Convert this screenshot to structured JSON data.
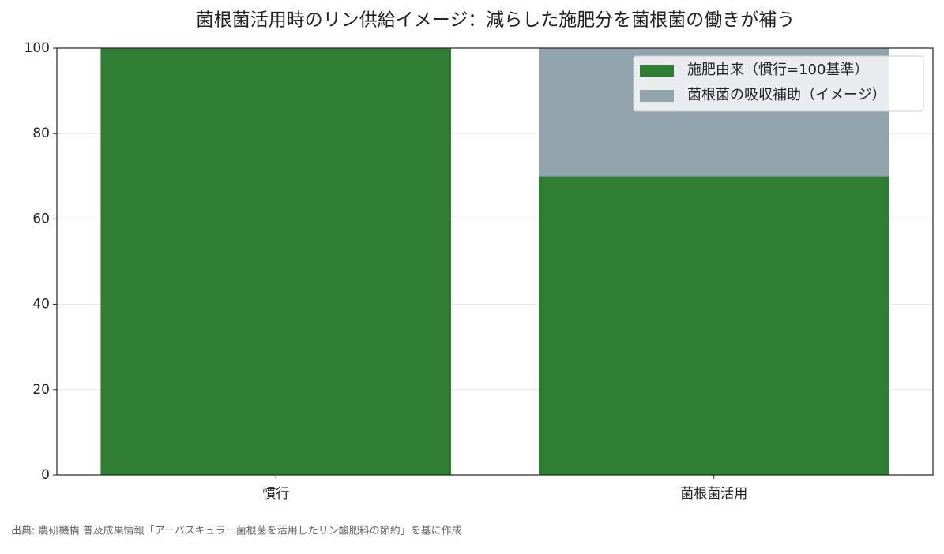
{
  "chart_data": {
    "type": "bar",
    "stacked": true,
    "title": "菌根菌活用時のリン供給イメージ：減らした施肥分を菌根菌の働きが補う",
    "categories": [
      "慣行",
      "菌根菌活用"
    ],
    "series": [
      {
        "name": "施肥由来（慣行=100基準）",
        "color": "#2e7d32",
        "values": [
          100,
          70
        ]
      },
      {
        "name": "菌根菌の吸収補助（イメージ）",
        "color": "#90a4ae",
        "values": [
          0,
          30
        ]
      }
    ],
    "ylim": [
      0,
      100
    ],
    "yticks": [
      0,
      20,
      40,
      60,
      80,
      100
    ],
    "grid": true,
    "legend": "upper right",
    "source": "出典: 農研機構 普及成果情報「アーバスキュラー菌根菌を活用したリン酸肥料の節約」を基に作成"
  }
}
